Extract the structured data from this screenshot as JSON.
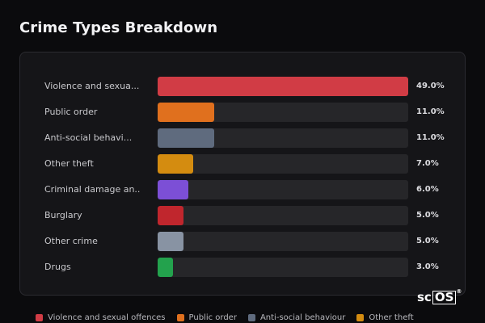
{
  "page": {
    "title": "Crime Types Breakdown"
  },
  "chart_data": {
    "type": "bar",
    "orientation": "horizontal",
    "title": "Crime Types Breakdown",
    "categories": [
      "Violence and sexua...",
      "Public order",
      "Anti-social behavi...",
      "Other theft",
      "Criminal damage an...",
      "Burglary",
      "Other crime",
      "Drugs"
    ],
    "values": [
      49.0,
      11.0,
      11.0,
      7.0,
      6.0,
      5.0,
      5.0,
      3.0
    ],
    "value_labels": [
      "49.0%",
      "11.0%",
      "11.0%",
      "7.0%",
      "6.0%",
      "5.0%",
      "5.0%",
      "3.0%"
    ],
    "colors": [
      "#d13c45",
      "#e0701e",
      "#5f6b7e",
      "#d48c10",
      "#7c4fd6",
      "#c0262d",
      "#8893a3",
      "#23a24d"
    ],
    "xlim": [
      0,
      49
    ],
    "grid": false,
    "legend_position": "bottom",
    "legend": [
      {
        "label": "Violence and sexual offences",
        "color": "#d13c45"
      },
      {
        "label": "Public order",
        "color": "#e0701e"
      },
      {
        "label": "Anti-social behaviour",
        "color": "#5f6b7e"
      },
      {
        "label": "Other theft",
        "color": "#d48c10"
      }
    ]
  },
  "logo": {
    "text": "sc",
    "boxed": "OS",
    "mark": "®"
  }
}
